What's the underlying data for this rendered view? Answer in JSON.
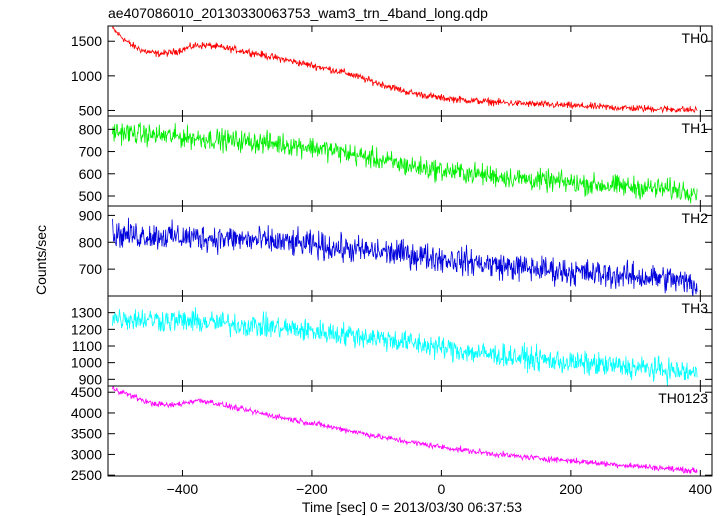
{
  "chart_data": {
    "title": "ae407086010_20130330063753_wam3_trn_4band_long.qdp",
    "type": "line",
    "xlabel": "Time [sec] 0 = 2013/03/30 06:37:53",
    "ylabel": "Counts/sec",
    "xlim": [
      -515,
      418
    ],
    "xticks": [
      -400,
      -200,
      0,
      200,
      400
    ],
    "grid": false,
    "panels": [
      {
        "name": "TH0",
        "color": "#ff0000",
        "ylim": [
          420,
          1720
        ],
        "yticks": [
          500,
          1000,
          1500
        ],
        "noise": 40,
        "points": [
          [
            -508,
            1680
          ],
          [
            -495,
            1570
          ],
          [
            -480,
            1450
          ],
          [
            -460,
            1360
          ],
          [
            -440,
            1320
          ],
          [
            -420,
            1330
          ],
          [
            -400,
            1380
          ],
          [
            -380,
            1440
          ],
          [
            -360,
            1440
          ],
          [
            -340,
            1410
          ],
          [
            -300,
            1350
          ],
          [
            -250,
            1250
          ],
          [
            -200,
            1150
          ],
          [
            -150,
            1050
          ],
          [
            -100,
            900
          ],
          [
            -50,
            760
          ],
          [
            0,
            680
          ],
          [
            50,
            640
          ],
          [
            100,
            610
          ],
          [
            150,
            590
          ],
          [
            200,
            570
          ],
          [
            250,
            550
          ],
          [
            300,
            530
          ],
          [
            350,
            520
          ],
          [
            395,
            505
          ]
        ]
      },
      {
        "name": "TH1",
        "color": "#00ee00",
        "ylim": [
          455,
          860
        ],
        "yticks": [
          500,
          600,
          700,
          800
        ],
        "noise": 38,
        "points": [
          [
            -508,
            790
          ],
          [
            -450,
            775
          ],
          [
            -400,
            765
          ],
          [
            -350,
            755
          ],
          [
            -300,
            745
          ],
          [
            -250,
            735
          ],
          [
            -200,
            720
          ],
          [
            -150,
            695
          ],
          [
            -100,
            665
          ],
          [
            -50,
            635
          ],
          [
            0,
            615
          ],
          [
            50,
            600
          ],
          [
            100,
            585
          ],
          [
            150,
            570
          ],
          [
            200,
            560
          ],
          [
            250,
            548
          ],
          [
            300,
            540
          ],
          [
            350,
            530
          ],
          [
            395,
            522
          ]
        ]
      },
      {
        "name": "TH2",
        "color": "#0000dd",
        "ylim": [
          600,
          935
        ],
        "yticks": [
          700,
          800,
          900
        ],
        "noise": 40,
        "points": [
          [
            -508,
            830
          ],
          [
            -450,
            825
          ],
          [
            -400,
            820
          ],
          [
            -350,
            815
          ],
          [
            -300,
            810
          ],
          [
            -250,
            800
          ],
          [
            -200,
            790
          ],
          [
            -150,
            775
          ],
          [
            -100,
            765
          ],
          [
            -50,
            755
          ],
          [
            0,
            740
          ],
          [
            50,
            725
          ],
          [
            100,
            710
          ],
          [
            150,
            700
          ],
          [
            200,
            690
          ],
          [
            250,
            680
          ],
          [
            300,
            672
          ],
          [
            350,
            665
          ],
          [
            395,
            640
          ]
        ]
      },
      {
        "name": "TH3",
        "color": "#00ffff",
        "ylim": [
          860,
          1400
        ],
        "yticks": [
          900,
          1000,
          1100,
          1200,
          1300
        ],
        "noise": 55,
        "points": [
          [
            -508,
            1270
          ],
          [
            -450,
            1260
          ],
          [
            -400,
            1250
          ],
          [
            -350,
            1240
          ],
          [
            -300,
            1225
          ],
          [
            -250,
            1210
          ],
          [
            -200,
            1190
          ],
          [
            -150,
            1170
          ],
          [
            -100,
            1150
          ],
          [
            -50,
            1120
          ],
          [
            0,
            1090
          ],
          [
            50,
            1060
          ],
          [
            100,
            1040
          ],
          [
            150,
            1020
          ],
          [
            200,
            1000
          ],
          [
            250,
            985
          ],
          [
            300,
            970
          ],
          [
            350,
            955
          ],
          [
            395,
            935
          ]
        ]
      },
      {
        "name": "TH0123",
        "color": "#ff00ff",
        "ylim": [
          2480,
          4650
        ],
        "yticks": [
          2500,
          3000,
          3500,
          4000,
          4500
        ],
        "noise": 55,
        "points": [
          [
            -508,
            4600
          ],
          [
            -480,
            4420
          ],
          [
            -450,
            4240
          ],
          [
            -420,
            4180
          ],
          [
            -400,
            4230
          ],
          [
            -380,
            4300
          ],
          [
            -360,
            4280
          ],
          [
            -340,
            4200
          ],
          [
            -300,
            4060
          ],
          [
            -250,
            3900
          ],
          [
            -200,
            3750
          ],
          [
            -150,
            3600
          ],
          [
            -100,
            3440
          ],
          [
            -50,
            3300
          ],
          [
            0,
            3180
          ],
          [
            50,
            3070
          ],
          [
            100,
            2980
          ],
          [
            150,
            2910
          ],
          [
            200,
            2850
          ],
          [
            250,
            2780
          ],
          [
            300,
            2720
          ],
          [
            350,
            2660
          ],
          [
            395,
            2600
          ]
        ]
      }
    ]
  }
}
